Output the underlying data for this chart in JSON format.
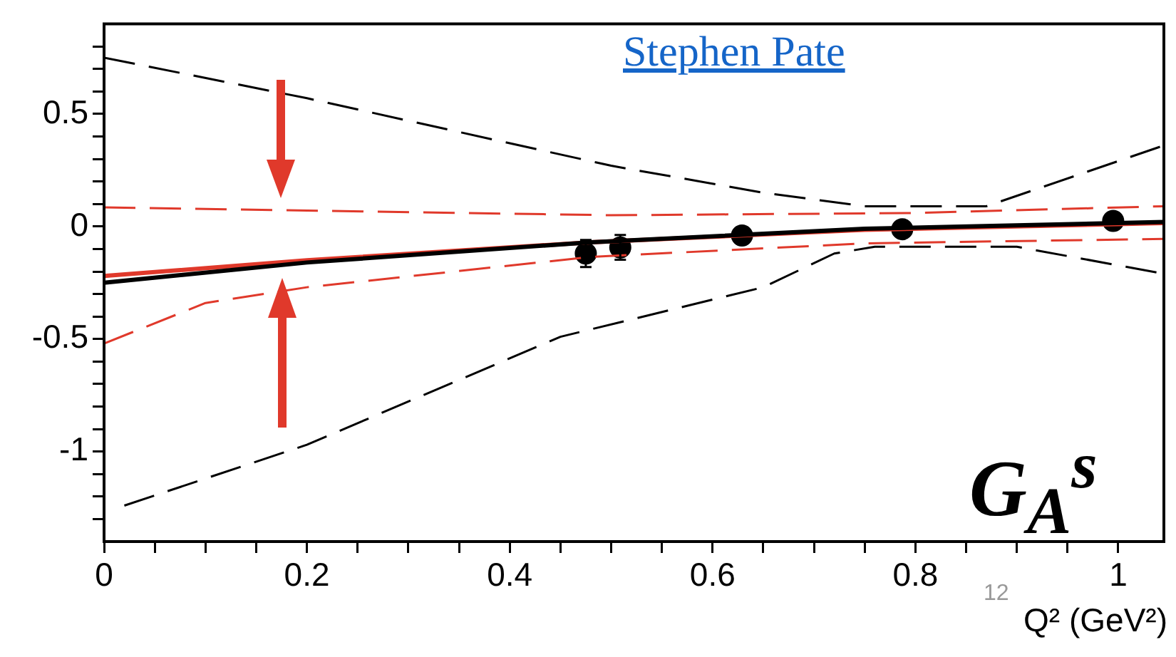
{
  "chart_data": {
    "type": "line",
    "xlabel": "Q² (GeV²)",
    "annotations": [
      "Stephen Pate",
      "G$_{A}$$^{s}$",
      "12"
    ],
    "xlim": [
      0,
      1.045
    ],
    "ylim": [
      -1.4,
      0.9
    ],
    "xticks": [
      0,
      {
        "value": 0.05,
        "label": null
      },
      {
        "value": 0.1,
        "label": null
      },
      {
        "value": 0.15,
        "label": null
      },
      0.2,
      {
        "value": 0.25,
        "label": null
      },
      {
        "value": 0.3,
        "label": null
      },
      {
        "value": 0.35,
        "label": null
      },
      0.4,
      {
        "value": 0.45,
        "label": null
      },
      {
        "value": 0.5,
        "label": null
      },
      {
        "value": 0.55,
        "label": null
      },
      0.6,
      {
        "value": 0.65,
        "label": null
      },
      {
        "value": 0.7,
        "label": null
      },
      {
        "value": 0.75,
        "label": null
      },
      0.8,
      {
        "value": 0.85,
        "label": null
      },
      {
        "value": 0.9,
        "label": null
      },
      {
        "value": 0.95,
        "label": null
      },
      1
    ],
    "yticks": [
      {
        "value": -1.3,
        "label": null
      },
      {
        "value": -1.2,
        "label": null
      },
      {
        "value": -1.1,
        "label": null
      },
      -1,
      {
        "value": -0.9,
        "label": null
      },
      {
        "value": -0.8,
        "label": null
      },
      {
        "value": -0.7,
        "label": null
      },
      {
        "value": -0.6,
        "label": null
      },
      -0.5,
      {
        "value": -0.4,
        "label": null
      },
      {
        "value": -0.3,
        "label": null
      },
      {
        "value": -0.2,
        "label": null
      },
      {
        "value": -0.1,
        "label": null
      },
      0,
      {
        "value": 0.1,
        "label": null
      },
      {
        "value": 0.2,
        "label": null
      },
      {
        "value": 0.3,
        "label": null
      },
      {
        "value": 0.4,
        "label": null
      },
      0.5,
      {
        "value": 0.6,
        "label": null
      },
      {
        "value": 0.7,
        "label": null
      },
      {
        "value": 0.8,
        "label": null
      }
    ],
    "grid": false,
    "legend": false,
    "series": [
      {
        "type": "line",
        "color": "#000000",
        "line_style": "dashed",
        "x": [
          0,
          0.2,
          0.5,
          0.65,
          0.75,
          0.87,
          1.045
        ],
        "values": [
          0.75,
          0.57,
          0.27,
          0.15,
          0.09,
          0.09,
          0.36
        ]
      },
      {
        "type": "line",
        "color": "#000000",
        "line_style": "dashed",
        "x": [
          0.02,
          0.2,
          0.45,
          0.65,
          0.72,
          0.76,
          0.9,
          1.045
        ],
        "values": [
          -1.24,
          -0.97,
          -0.49,
          -0.27,
          -0.12,
          -0.09,
          -0.09,
          -0.21
        ]
      },
      {
        "type": "line",
        "color": "#e0392b",
        "line_style": "dashed",
        "x": [
          0,
          0.5,
          0.8,
          1.045
        ],
        "values": [
          0.085,
          0.05,
          0.06,
          0.09
        ]
      },
      {
        "type": "line",
        "color": "#e0392b",
        "line_style": "dashed",
        "x": [
          0,
          0.1,
          0.2,
          0.48,
          0.75,
          1.045
        ],
        "values": [
          -0.52,
          -0.34,
          -0.27,
          -0.135,
          -0.075,
          -0.055
        ]
      },
      {
        "type": "line",
        "color": "#000000",
        "line_style": "solid",
        "x": [
          0,
          0.2,
          0.48,
          0.75,
          1.045
        ],
        "values": [
          -0.25,
          -0.16,
          -0.07,
          -0.01,
          0.02
        ]
      },
      {
        "type": "line",
        "color": "#e0392b",
        "line_style": "solid",
        "x": [
          0,
          0.2,
          0.48,
          0.75,
          1.045
        ],
        "values": [
          -0.22,
          -0.15,
          -0.07,
          -0.015,
          0.015
        ]
      },
      {
        "type": "scatter",
        "color": "#000000",
        "marker": "circle",
        "x": [
          0.509,
          0.629,
          0.787,
          0.995
        ],
        "values": [
          -0.093,
          -0.04,
          -0.012,
          0.025
        ],
        "errors": [
          0.055,
          null,
          null,
          null
        ]
      },
      {
        "type": "scatter",
        "color": "#000000",
        "marker": "circle",
        "x": [
          0.475
        ],
        "values": [
          -0.12
        ],
        "errors": [
          0.06
        ]
      }
    ]
  }
}
